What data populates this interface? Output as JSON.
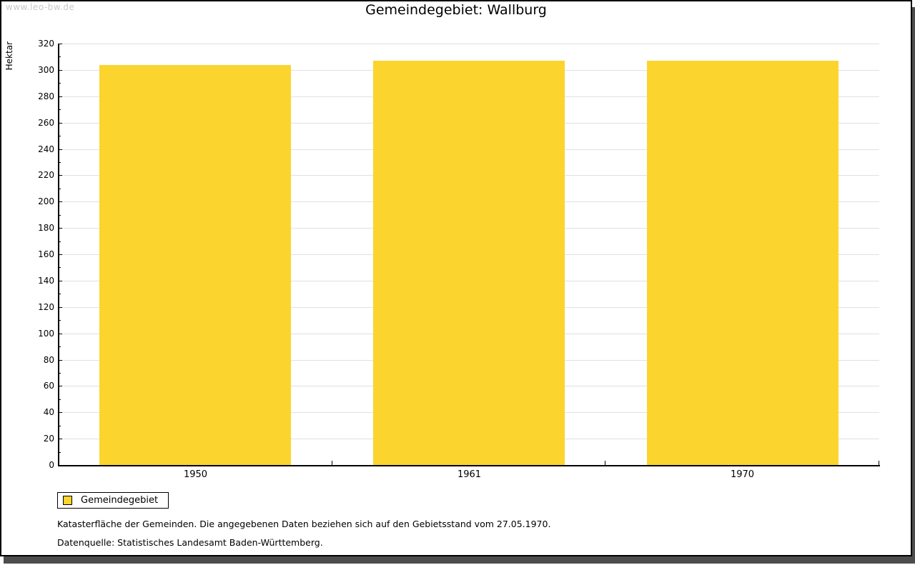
{
  "frame": {
    "watermark": "www.leo-bw.de"
  },
  "title": "Gemeindegebiet: Wallburg",
  "chart_data": {
    "type": "bar",
    "title": "Gemeindegebiet: Wallburg",
    "categories": [
      "1950",
      "1961",
      "1970"
    ],
    "series": [
      {
        "name": "Gemeindegebiet",
        "values": [
          304,
          307,
          307
        ],
        "color": "#fcd42e"
      }
    ],
    "xlabel": "",
    "ylabel": "Hektar",
    "ylim": [
      0,
      320
    ],
    "ytick_step": 20,
    "yminor_step": 10,
    "grid": "horizontal-major",
    "legend_position": "bottom-left"
  },
  "legend": {
    "items": [
      {
        "label": "Gemeindegebiet",
        "color": "#fcd42e"
      }
    ]
  },
  "footnotes": [
    "Katasterfläche der Gemeinden. Die angegebenen Daten beziehen sich auf den Gebietsstand vom 27.05.1970.",
    "Datenquelle: Statistisches Landesamt Baden-Württemberg."
  ],
  "colors": {
    "bar": "#fcd42e",
    "grid": "#e0e0e0",
    "axis": "#000000",
    "watermark": "#c9c9c9",
    "frame_border": "#000000",
    "frame_shadow": "#4d4d4d"
  }
}
